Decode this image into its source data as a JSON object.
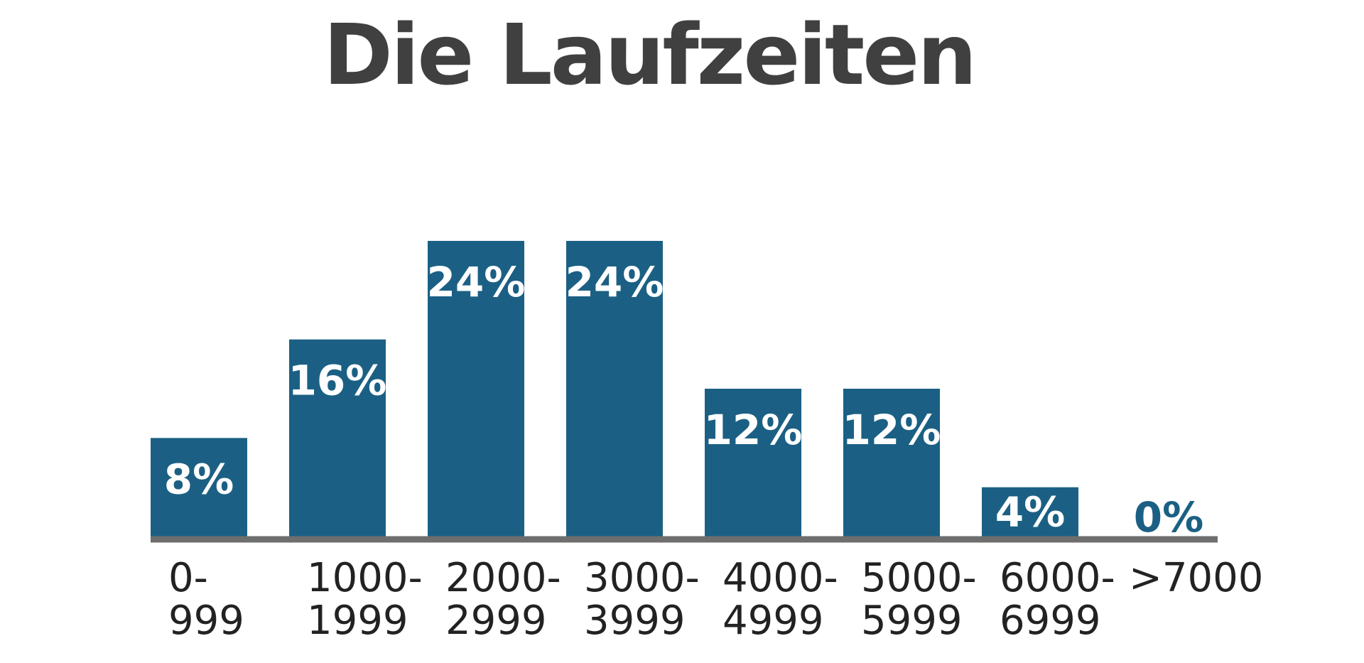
{
  "chart_data": {
    "type": "bar",
    "title": "Die Laufzeiten",
    "categories": [
      [
        "0-",
        "999"
      ],
      [
        "1000-",
        "1999"
      ],
      [
        "2000-",
        "2999"
      ],
      [
        "3000-",
        "3999"
      ],
      [
        "4000-",
        "4999"
      ],
      [
        "5000-",
        "5999"
      ],
      [
        "6000-",
        "6999"
      ],
      [
        ">7000"
      ]
    ],
    "values": [
      8,
      16,
      24,
      24,
      12,
      12,
      4,
      0
    ],
    "value_labels": [
      "8%",
      "16%",
      "24%",
      "24%",
      "12%",
      "12%",
      "4%",
      "0%"
    ],
    "ylim": [
      0,
      24
    ],
    "grid": false,
    "legend": "none",
    "colors": {
      "bar": "#1b6084",
      "baseline": "#6e6e6e",
      "title": "#404040",
      "bar_label": "#ffffff",
      "category_label": "#222222"
    }
  }
}
